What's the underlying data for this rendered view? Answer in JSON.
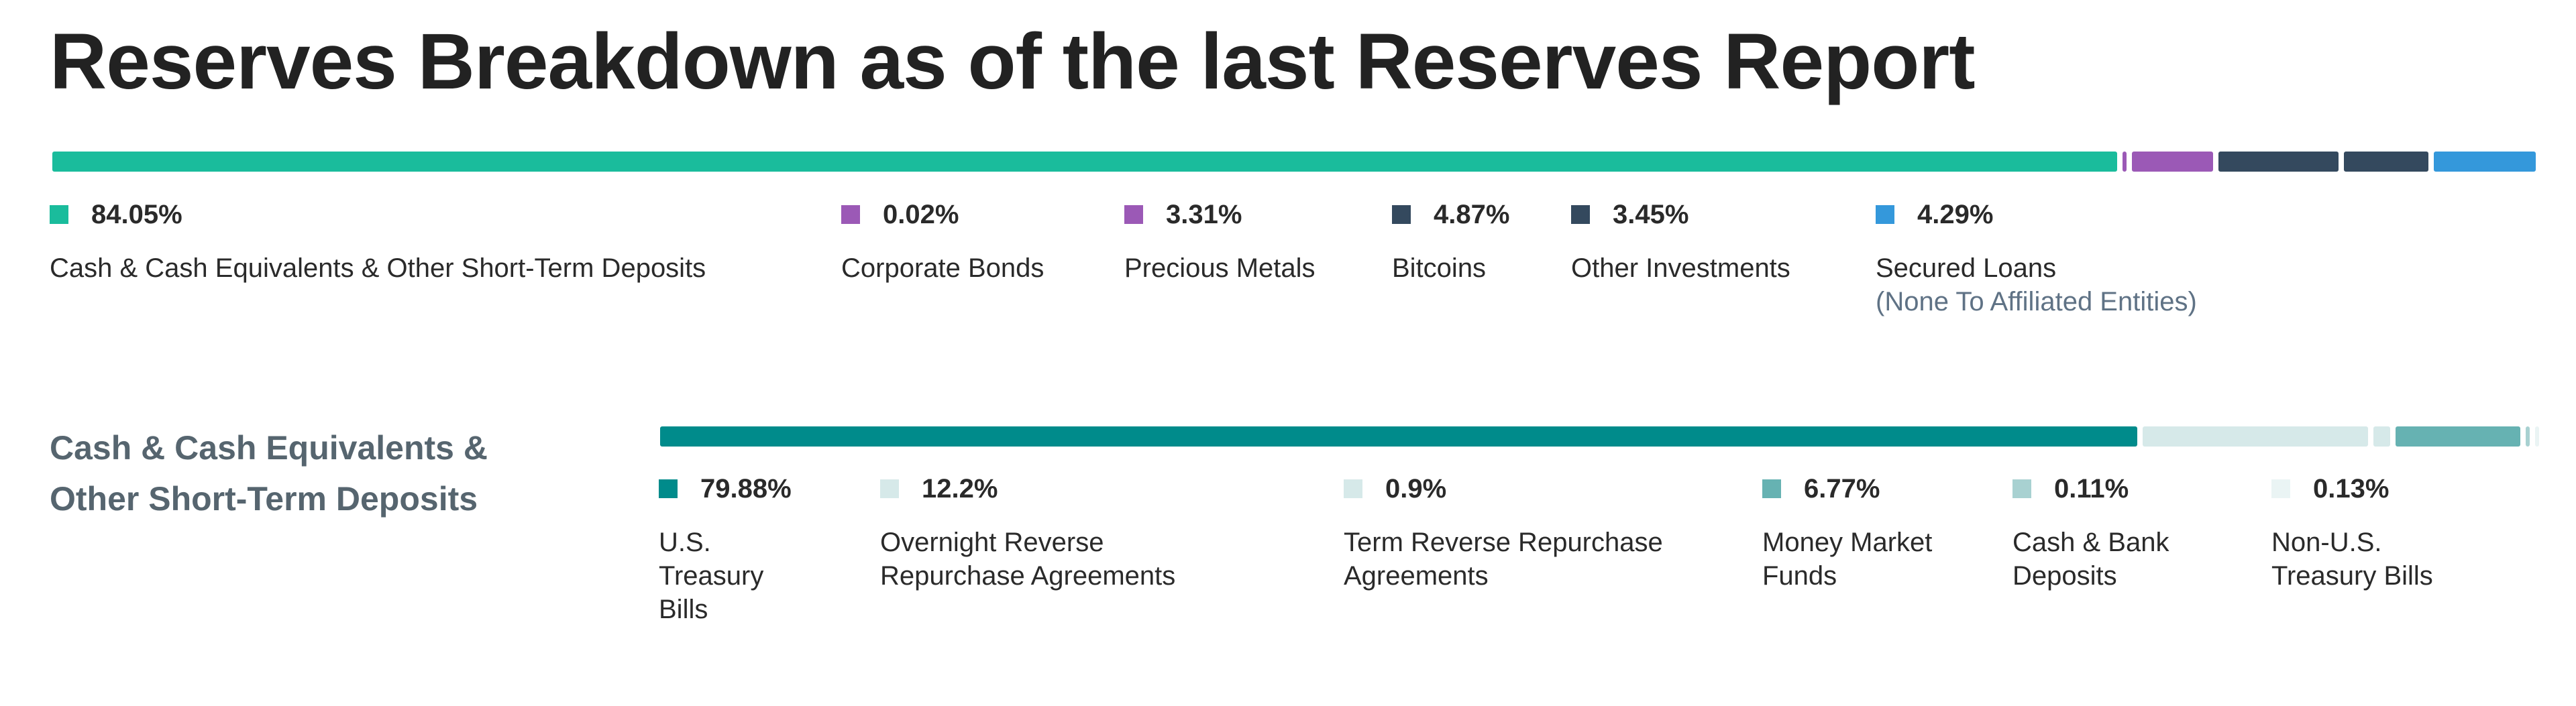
{
  "page_title": "Reserves Breakdown as of the last Reserves Report",
  "section_title": "Cash & Cash Equivalents & Other Short-Term Deposits",
  "chart_data": [
    {
      "type": "bar",
      "orientation": "stacked-horizontal",
      "title": "Reserves Breakdown as of the last Reserves Report",
      "unit": "%",
      "items": [
        {
          "name": "Cash & Cash Equivalents & Other Short-Term Deposits",
          "value": 84.05,
          "pct": "84.05%",
          "color": "#1abc9c"
        },
        {
          "name": "Corporate Bonds",
          "value": 0.02,
          "pct": "0.02%",
          "color": "#9b59b6"
        },
        {
          "name": "Precious Metals",
          "value": 3.31,
          "pct": "3.31%",
          "color": "#9b59b6"
        },
        {
          "name": "Bitcoins",
          "value": 4.87,
          "pct": "4.87%",
          "color": "#34495e"
        },
        {
          "name": "Other Investments",
          "value": 3.45,
          "pct": "3.45%",
          "color": "#34495e"
        },
        {
          "name": "Secured Loans",
          "sub": "(None To Affiliated Entities)",
          "value": 4.29,
          "pct": "4.29%",
          "color": "#3498db"
        }
      ]
    },
    {
      "type": "bar",
      "orientation": "stacked-horizontal",
      "title": "Cash & Cash Equivalents & Other Short-Term Deposits",
      "unit": "%",
      "items": [
        {
          "name": "U.S. Treasury Bills",
          "value": 79.88,
          "pct": "79.88%",
          "color": "#008b8b"
        },
        {
          "name": "Overnight Reverse Repurchase Agreements",
          "value": 12.2,
          "pct": "12.2%",
          "color": "#d6e9e9"
        },
        {
          "name": "Term Reverse Repurchase Agreements",
          "value": 0.9,
          "pct": "0.9%",
          "color": "#d6e9e9"
        },
        {
          "name": "Money Market Funds",
          "value": 6.77,
          "pct": "6.77%",
          "color": "#66b2b2"
        },
        {
          "name": "Cash & Bank Deposits",
          "value": 0.11,
          "pct": "0.11%",
          "color": "#a8d1d1"
        },
        {
          "name": "Non-U.S. Treasury Bills",
          "value": 0.13,
          "pct": "0.13%",
          "color": "#eaf4f4"
        }
      ]
    }
  ]
}
